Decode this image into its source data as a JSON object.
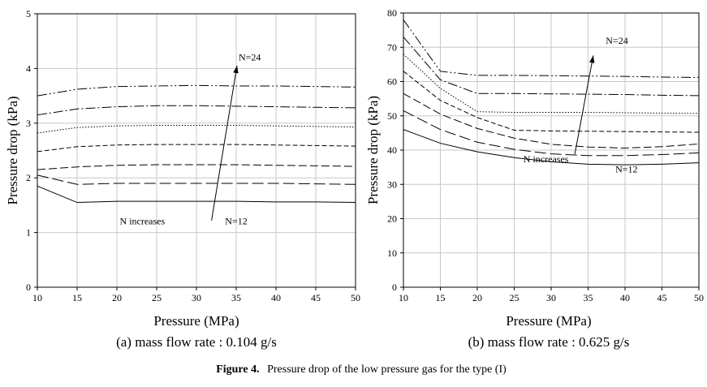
{
  "chart_data": [
    {
      "type": "line",
      "subtitle": "(a) mass flow rate : 0.104 g/s",
      "xlabel": "Pressure (MPa)",
      "ylabel": "Pressure drop (kPa)",
      "xlim": [
        10,
        50
      ],
      "ylim": [
        0,
        5
      ],
      "xticks": [
        10,
        15,
        20,
        25,
        30,
        35,
        40,
        45,
        50
      ],
      "yticks": [
        0,
        1,
        2,
        3,
        4,
        5
      ],
      "grid": true,
      "x": [
        10,
        15,
        20,
        25,
        30,
        35,
        40,
        45,
        50
      ],
      "series": [
        {
          "values": [
            1.85,
            1.55,
            1.57,
            1.57,
            1.57,
            1.57,
            1.56,
            1.56,
            1.55
          ],
          "dash": ""
        },
        {
          "values": [
            2.05,
            1.88,
            1.9,
            1.9,
            1.9,
            1.9,
            1.9,
            1.89,
            1.88
          ],
          "dash": "14,5"
        },
        {
          "values": [
            2.15,
            2.2,
            2.23,
            2.24,
            2.24,
            2.24,
            2.23,
            2.22,
            2.21
          ],
          "dash": "10,4"
        },
        {
          "values": [
            2.48,
            2.57,
            2.6,
            2.61,
            2.61,
            2.61,
            2.6,
            2.59,
            2.58
          ],
          "dash": "6,3"
        },
        {
          "values": [
            2.82,
            2.92,
            2.95,
            2.96,
            2.96,
            2.96,
            2.95,
            2.94,
            2.93
          ],
          "dash": "1.5,2"
        },
        {
          "values": [
            3.15,
            3.26,
            3.3,
            3.32,
            3.32,
            3.31,
            3.3,
            3.29,
            3.28
          ],
          "dash": "12,3,2,3"
        },
        {
          "values": [
            3.5,
            3.62,
            3.67,
            3.68,
            3.69,
            3.68,
            3.68,
            3.67,
            3.66
          ],
          "dash": "12,3,2,3,2,3"
        }
      ],
      "annotations": [
        {
          "text": "N=24",
          "x": 36.7,
          "y": 4.15
        },
        {
          "text": "N increases",
          "x": 23.2,
          "y": 1.15
        },
        {
          "text": "N=12",
          "x": 35,
          "y": 1.15
        }
      ],
      "arrow": {
        "from": [
          31.9,
          1.22
        ],
        "to": [
          35.1,
          4.05
        ]
      }
    },
    {
      "type": "line",
      "subtitle": "(b) mass flow rate : 0.625 g/s",
      "xlabel": "Pressure (MPa)",
      "ylabel": "Pressure drop (kPa)",
      "xlim": [
        10,
        50
      ],
      "ylim": [
        0,
        80
      ],
      "xticks": [
        10,
        15,
        20,
        25,
        30,
        35,
        40,
        45,
        50
      ],
      "yticks": [
        0,
        10,
        20,
        30,
        40,
        50,
        60,
        70,
        80
      ],
      "grid": true,
      "x": [
        10,
        15,
        20,
        25,
        30,
        35,
        40,
        45,
        50
      ],
      "series": [
        {
          "values": [
            46,
            42,
            39.5,
            37.8,
            36.6,
            35.9,
            35.7,
            35.9,
            36.3
          ],
          "dash": ""
        },
        {
          "values": [
            51.5,
            46,
            42.3,
            40.2,
            38.9,
            38.4,
            38.4,
            38.7,
            39.2
          ],
          "dash": "14,5"
        },
        {
          "values": [
            56.5,
            50.5,
            46.3,
            43.5,
            41.7,
            40.9,
            40.6,
            41,
            41.8
          ],
          "dash": "10,4"
        },
        {
          "values": [
            63,
            54.5,
            49.5,
            45.8,
            45.6,
            45.5,
            45.4,
            45.3,
            45.2
          ],
          "dash": "6,3"
        },
        {
          "values": [
            68,
            58,
            51.2,
            51,
            51,
            51,
            50.9,
            50.8,
            50.7
          ],
          "dash": "1.5,2"
        },
        {
          "values": [
            73,
            60.5,
            56.5,
            56.5,
            56.4,
            56.3,
            56.2,
            56,
            55.9
          ],
          "dash": "12,3,2,3"
        },
        {
          "values": [
            78,
            63,
            61.8,
            61.8,
            61.7,
            61.6,
            61.5,
            61.3,
            61.2
          ],
          "dash": "12,3,2,3,2,3"
        }
      ],
      "annotations": [
        {
          "text": "N=24",
          "x": 38.9,
          "y": 71
        },
        {
          "text": "N increases",
          "x": 29.3,
          "y": 36.4
        },
        {
          "text": "N=12",
          "x": 40.2,
          "y": 33.5
        }
      ],
      "arrow": {
        "from": [
          33.2,
          38.8
        ],
        "to": [
          35.7,
          67.6
        ]
      }
    }
  ],
  "caption": {
    "label": "Figure 4.",
    "text": "Pressure drop of the low pressure gas for the type (I)"
  }
}
